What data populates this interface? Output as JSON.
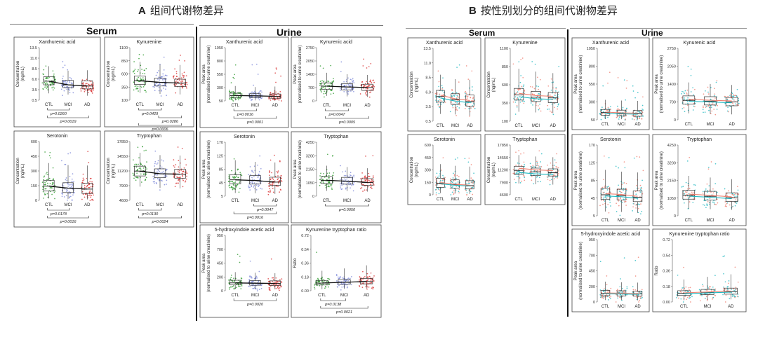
{
  "figure": {
    "panel_a_letter": "A",
    "panel_a_title": "组间代谢物差异",
    "panel_b_letter": "B",
    "panel_b_title": "按性别划分的组间代谢物差异"
  },
  "sections": {
    "serum": "Serum",
    "urine": "Urine"
  },
  "colors": {
    "CTL": "#2e9a2e",
    "MCI": "#7a86d8",
    "AD": "#d83030",
    "female": "#f08070",
    "male": "#20b8c0",
    "trend": "#111111"
  },
  "chart_data": [
    {
      "id": "A-serum-xanthurenic",
      "panel": "A",
      "type": "box",
      "title": "Xanthurenic acid",
      "ylabel": [
        "Concentration",
        "(ng/mL)"
      ],
      "yticks": [
        "13.5",
        "11.0",
        "8.5",
        "6.0",
        "3.5",
        "0.5"
      ],
      "ylim": [
        0.5,
        13.5
      ],
      "categories": [
        "CTL",
        "MCI",
        "AD"
      ],
      "median": [
        5.2,
        4.3,
        4.0
      ],
      "q1": [
        4.3,
        3.6,
        3.3
      ],
      "q3": [
        6.3,
        5.4,
        5.3
      ],
      "whisker_low": [
        2.2,
        1.9,
        1.6
      ],
      "whisker_high": [
        8.9,
        7.8,
        7.9
      ],
      "pvalues": [
        {
          "from": "CTL",
          "to": "MCI",
          "text": "p=0.0260"
        },
        {
          "from": "CTL",
          "to": "AD",
          "text": "p=0.0019"
        }
      ]
    },
    {
      "id": "A-serum-kynurenine",
      "panel": "A",
      "type": "box",
      "title": "Kynurenine",
      "ylabel": [
        "Concentration",
        "(ng/mL)"
      ],
      "yticks": [
        "1100",
        "850",
        "600",
        "350",
        "100"
      ],
      "ylim": [
        100,
        1100
      ],
      "categories": [
        "CTL",
        "MCI",
        "AD"
      ],
      "median": [
        470,
        440,
        425
      ],
      "q1": [
        400,
        370,
        360
      ],
      "q3": [
        560,
        520,
        500
      ],
      "whisker_low": [
        240,
        220,
        210
      ],
      "whisker_high": [
        830,
        780,
        770
      ],
      "pvalues": [
        {
          "from": "CTL",
          "to": "MCI",
          "text": "p=0.0429"
        },
        {
          "from": "MCI",
          "to": "AD",
          "text": "p=0.0286"
        },
        {
          "from": "CTL",
          "to": "AD",
          "text": "p=0.0006"
        }
      ]
    },
    {
      "id": "A-serum-serotonin",
      "panel": "A",
      "type": "box",
      "title": "Serotonin",
      "ylabel": [
        "Concentration",
        "(ng/mL)"
      ],
      "yticks": [
        "600",
        "450",
        "300",
        "150",
        "0"
      ],
      "ylim": [
        0,
        600
      ],
      "categories": [
        "CTL",
        "MCI",
        "AD"
      ],
      "median": [
        145,
        125,
        115
      ],
      "q1": [
        95,
        80,
        70
      ],
      "q3": [
        205,
        180,
        175
      ],
      "whisker_low": [
        20,
        15,
        10
      ],
      "whisker_high": [
        380,
        360,
        355
      ],
      "pvalues": [
        {
          "from": "CTL",
          "to": "MCI",
          "text": "p=0.0178"
        },
        {
          "from": "CTL",
          "to": "AD",
          "text": "p=0.0016"
        }
      ]
    },
    {
      "id": "A-serum-tryptophan",
      "panel": "A",
      "type": "box",
      "title": "Tryptophan",
      "ylabel": [
        "Concentration",
        "(ng/mL)"
      ],
      "yticks": [
        "17850",
        "14550",
        "11200",
        "7900",
        "4600"
      ],
      "ylim": [
        4600,
        17850
      ],
      "categories": [
        "CTL",
        "MCI",
        "AD"
      ],
      "median": [
        11200,
        10600,
        10500
      ],
      "q1": [
        10100,
        9700,
        9600
      ],
      "q3": [
        12300,
        11700,
        11600
      ],
      "whisker_low": [
        7700,
        7400,
        7300
      ],
      "whisker_high": [
        15300,
        14800,
        14700
      ],
      "pvalues": [
        {
          "from": "CTL",
          "to": "MCI",
          "text": "p=0.0130"
        },
        {
          "from": "CTL",
          "to": "AD",
          "text": "p=0.0024"
        }
      ]
    },
    {
      "id": "A-urine-xanthurenic",
      "panel": "A",
      "type": "box",
      "title": "Xanthurenic acid",
      "ylabel": [
        "Peak area",
        "(normalised to urine creatinine)"
      ],
      "yticks": [
        "1050",
        "800",
        "550",
        "300",
        "50"
      ],
      "ylim": [
        50,
        1050
      ],
      "categories": [
        "CTL",
        "MCI",
        "AD"
      ],
      "median": [
        150,
        145,
        135
      ],
      "q1": [
        115,
        110,
        100
      ],
      "q3": [
        195,
        185,
        180
      ],
      "whisker_low": [
        60,
        60,
        55
      ],
      "whisker_high": [
        330,
        310,
        320
      ],
      "pvalues": [
        {
          "from": "CTL",
          "to": "MCI",
          "text": "p=0.0016"
        },
        {
          "from": "CTL",
          "to": "AD",
          "text": "p=0.0001"
        }
      ]
    },
    {
      "id": "A-urine-kynurenic",
      "panel": "A",
      "type": "box",
      "title": "Kynurenic acid",
      "ylabel": [
        "Peak area",
        "(normalised to urine creatinine)"
      ],
      "yticks": [
        "2750",
        "2050",
        "1400",
        "700",
        "0"
      ],
      "ylim": [
        0,
        2750
      ],
      "categories": [
        "CTL",
        "MCI",
        "AD"
      ],
      "median": [
        760,
        720,
        690
      ],
      "q1": [
        600,
        570,
        540
      ],
      "q3": [
        930,
        890,
        860
      ],
      "whisker_low": [
        260,
        230,
        210
      ],
      "whisker_high": [
        1450,
        1380,
        1340
      ],
      "pvalues": [
        {
          "from": "CTL",
          "to": "MCI",
          "text": "p=0.0047"
        },
        {
          "from": "CTL",
          "to": "AD",
          "text": "p=0.0005"
        }
      ]
    },
    {
      "id": "A-urine-serotonin",
      "panel": "A",
      "type": "box",
      "title": "Serotonin",
      "ylabel": [
        "Peak area",
        "(normalised to urine creatinine)"
      ],
      "yticks": [
        "170",
        "125",
        "85",
        "45",
        "5"
      ],
      "ylim": [
        5,
        170
      ],
      "categories": [
        "CTL",
        "MCI",
        "AD"
      ],
      "median": [
        55,
        53,
        48
      ],
      "q1": [
        43,
        42,
        38
      ],
      "q3": [
        70,
        68,
        63
      ],
      "whisker_low": [
        15,
        14,
        12
      ],
      "whisker_high": [
        115,
        110,
        108
      ],
      "pvalues": [
        {
          "from": "MCI",
          "to": "AD",
          "text": "p=0.0047"
        },
        {
          "from": "CTL",
          "to": "AD",
          "text": "p=0.0016"
        }
      ]
    },
    {
      "id": "A-urine-tryptophan",
      "panel": "A",
      "type": "box",
      "title": "Tryptophan",
      "ylabel": [
        "Peak area",
        "(normalised to urine creatinine)"
      ],
      "yticks": [
        "4250",
        "3200",
        "2150",
        "1050",
        "0"
      ],
      "ylim": [
        0,
        4250
      ],
      "categories": [
        "CTL",
        "MCI",
        "AD"
      ],
      "median": [
        1250,
        1180,
        1080
      ],
      "q1": [
        1000,
        950,
        860
      ],
      "q3": [
        1550,
        1480,
        1380
      ],
      "whisker_low": [
        420,
        400,
        360
      ],
      "whisker_high": [
        2400,
        2300,
        2200
      ],
      "pvalues": [
        {
          "from": "CTL",
          "to": "AD",
          "text": "p=0.0050"
        }
      ]
    },
    {
      "id": "A-urine-5hiaa",
      "panel": "A",
      "type": "box",
      "title": "5-hydroxyindole acetic acid",
      "ylabel": [
        "Peak area",
        "(normalised to urine creatinine)"
      ],
      "yticks": [
        "950",
        "700",
        "450",
        "200",
        "0"
      ],
      "ylim": [
        0,
        950
      ],
      "categories": [
        "CTL",
        "MCI",
        "AD"
      ],
      "median": [
        135,
        130,
        125
      ],
      "q1": [
        100,
        95,
        90
      ],
      "q3": [
        180,
        175,
        170
      ],
      "whisker_low": [
        30,
        28,
        25
      ],
      "whisker_high": [
        320,
        310,
        300
      ],
      "pvalues": [
        {
          "from": "CTL",
          "to": "AD",
          "text": "p=0.0020"
        }
      ]
    },
    {
      "id": "A-urine-kt-ratio",
      "panel": "A",
      "type": "box",
      "title": "Kynurenine tryptophan ratio",
      "ylabel": [
        "Ratio"
      ],
      "yticks": [
        "0.72",
        "0.54",
        "0.36",
        "0.18",
        "0.00"
      ],
      "ylim": [
        0,
        0.72
      ],
      "categories": [
        "CTL",
        "MCI",
        "AD"
      ],
      "median": [
        0.1,
        0.11,
        0.12
      ],
      "q1": [
        0.075,
        0.085,
        0.09
      ],
      "q3": [
        0.13,
        0.145,
        0.16
      ],
      "whisker_low": [
        0.02,
        0.025,
        0.03
      ],
      "whisker_high": [
        0.26,
        0.29,
        0.33
      ],
      "pvalues": [
        {
          "from": "CTL",
          "to": "MCI",
          "text": "p=0.0138"
        },
        {
          "from": "CTL",
          "to": "AD",
          "text": "p=0.0021"
        }
      ]
    },
    {
      "id": "B-serum-xanthurenic",
      "panel": "B",
      "type": "box",
      "title": "Xanthurenic acid",
      "ylabel": [
        "Concentration",
        "(ng/mL)"
      ],
      "yticks": [
        "13.5",
        "11.0",
        "8.5",
        "6.0",
        "3.5",
        "0.5"
      ],
      "ylim": [
        0.5,
        13.5
      ],
      "categories": [
        "CTL",
        "MCI",
        "AD"
      ],
      "median": [
        4.9,
        4.3,
        4.0
      ],
      "q1": [
        3.9,
        3.5,
        3.2
      ],
      "q3": [
        6.0,
        5.4,
        5.2
      ],
      "whisker_low": [
        1.8,
        1.7,
        1.5
      ],
      "whisker_high": [
        8.8,
        8.0,
        7.9
      ]
    },
    {
      "id": "B-serum-kynurenine",
      "panel": "B",
      "type": "box",
      "title": "Kynurenine",
      "ylabel": [
        "Concentration",
        "(ng/mL)"
      ],
      "yticks": [
        "1100",
        "850",
        "600",
        "350",
        "100"
      ],
      "ylim": [
        100,
        1100
      ],
      "categories": [
        "CTL",
        "MCI",
        "AD"
      ],
      "median": [
        460,
        430,
        420
      ],
      "q1": [
        390,
        370,
        355
      ],
      "q3": [
        550,
        510,
        495
      ],
      "whisker_low": [
        230,
        220,
        210
      ],
      "whisker_high": [
        820,
        780,
        760
      ]
    },
    {
      "id": "B-serum-serotonin",
      "panel": "B",
      "type": "box",
      "title": "Serotonin",
      "ylabel": [
        "Concentration",
        "(ng/mL)"
      ],
      "yticks": [
        "600",
        "450",
        "300",
        "150",
        "0"
      ],
      "ylim": [
        0,
        600
      ],
      "categories": [
        "CTL",
        "MCI",
        "AD"
      ],
      "median": [
        140,
        120,
        110
      ],
      "q1": [
        90,
        80,
        70
      ],
      "q3": [
        200,
        180,
        170
      ],
      "whisker_low": [
        20,
        15,
        10
      ],
      "whisker_high": [
        370,
        350,
        340
      ]
    },
    {
      "id": "B-serum-tryptophan",
      "panel": "B",
      "type": "box",
      "title": "Tryptophan",
      "ylabel": [
        "Concentration",
        "(ng/mL)"
      ],
      "yticks": [
        "17850",
        "14550",
        "11200",
        "7900",
        "4600"
      ],
      "ylim": [
        4600,
        17850
      ],
      "categories": [
        "CTL",
        "MCI",
        "AD"
      ],
      "median": [
        11100,
        10700,
        10500
      ],
      "q1": [
        10000,
        9700,
        9600
      ],
      "q3": [
        12200,
        11700,
        11500
      ],
      "whisker_low": [
        7600,
        7400,
        7300
      ],
      "whisker_high": [
        15200,
        14800,
        14600
      ]
    },
    {
      "id": "B-urine-xanthurenic",
      "panel": "B",
      "type": "box",
      "title": "Xanthurenic acid",
      "ylabel": [
        "Peak area",
        "(normalised to urine creatinine)"
      ],
      "yticks": [
        "1050",
        "800",
        "550",
        "300",
        "50"
      ],
      "ylim": [
        50,
        1050
      ],
      "categories": [
        "CTL",
        "MCI",
        "AD"
      ],
      "median": [
        150,
        140,
        135
      ],
      "q1": [
        115,
        105,
        100
      ],
      "q3": [
        195,
        185,
        180
      ],
      "whisker_low": [
        60,
        58,
        55
      ],
      "whisker_high": [
        330,
        320,
        315
      ]
    },
    {
      "id": "B-urine-kynurenic",
      "panel": "B",
      "type": "box",
      "title": "Kynurenic acid",
      "ylabel": [
        "Peak area",
        "(normalised to urine creatinine)"
      ],
      "yticks": [
        "2750",
        "2050",
        "1400",
        "700",
        "0"
      ],
      "ylim": [
        0,
        2750
      ],
      "categories": [
        "CTL",
        "MCI",
        "AD"
      ],
      "median": [
        750,
        720,
        690
      ],
      "q1": [
        600,
        570,
        540
      ],
      "q3": [
        920,
        890,
        860
      ],
      "whisker_low": [
        250,
        230,
        210
      ],
      "whisker_high": [
        1440,
        1380,
        1340
      ]
    },
    {
      "id": "B-urine-serotonin",
      "panel": "B",
      "type": "box",
      "title": "Serotonin",
      "ylabel": [
        "Peak area",
        "(normalised to urine creatinine)"
      ],
      "yticks": [
        "170",
        "125",
        "85",
        "45",
        "5"
      ],
      "ylim": [
        5,
        170
      ],
      "categories": [
        "CTL",
        "MCI",
        "AD"
      ],
      "median": [
        54,
        52,
        48
      ],
      "q1": [
        43,
        42,
        38
      ],
      "q3": [
        69,
        67,
        63
      ],
      "whisker_low": [
        15,
        14,
        12
      ],
      "whisker_high": [
        112,
        108,
        106
      ]
    },
    {
      "id": "B-urine-tryptophan",
      "panel": "B",
      "type": "box",
      "title": "Tryptophan",
      "ylabel": [
        "Peak area",
        "(normalised to urine creatinine)"
      ],
      "yticks": [
        "4250",
        "3200",
        "2150",
        "1050",
        "0"
      ],
      "ylim": [
        0,
        4250
      ],
      "categories": [
        "CTL",
        "MCI",
        "AD"
      ],
      "median": [
        1240,
        1170,
        1080
      ],
      "q1": [
        1000,
        950,
        860
      ],
      "q3": [
        1540,
        1470,
        1380
      ],
      "whisker_low": [
        420,
        400,
        360
      ],
      "whisker_high": [
        2400,
        2300,
        2200
      ]
    },
    {
      "id": "B-urine-5hiaa",
      "panel": "B",
      "type": "box",
      "title": "5-hydroxyindole acetic acid",
      "ylabel": [
        "Peak area",
        "(normalised to urine creatinine)"
      ],
      "yticks": [
        "950",
        "700",
        "450",
        "200",
        "0"
      ],
      "ylim": [
        0,
        950
      ],
      "categories": [
        "CTL",
        "MCI",
        "AD"
      ],
      "median": [
        130,
        128,
        122
      ],
      "q1": [
        95,
        92,
        88
      ],
      "q3": [
        175,
        170,
        165
      ],
      "whisker_low": [
        30,
        28,
        25
      ],
      "whisker_high": [
        310,
        300,
        295
      ]
    },
    {
      "id": "B-urine-kt-ratio",
      "panel": "B",
      "type": "box",
      "title": "Kynurenine tryptophan ratio",
      "ylabel": [
        "Ratio"
      ],
      "yticks": [
        "0.72",
        "0.54",
        "0.36",
        "0.18",
        "0.00"
      ],
      "ylim": [
        0,
        0.72
      ],
      "categories": [
        "CTL",
        "MCI",
        "AD"
      ],
      "median": [
        0.1,
        0.11,
        0.12
      ],
      "q1": [
        0.075,
        0.085,
        0.09
      ],
      "q3": [
        0.13,
        0.145,
        0.16
      ],
      "whisker_low": [
        0.02,
        0.025,
        0.03
      ],
      "whisker_high": [
        0.26,
        0.29,
        0.32
      ]
    }
  ]
}
